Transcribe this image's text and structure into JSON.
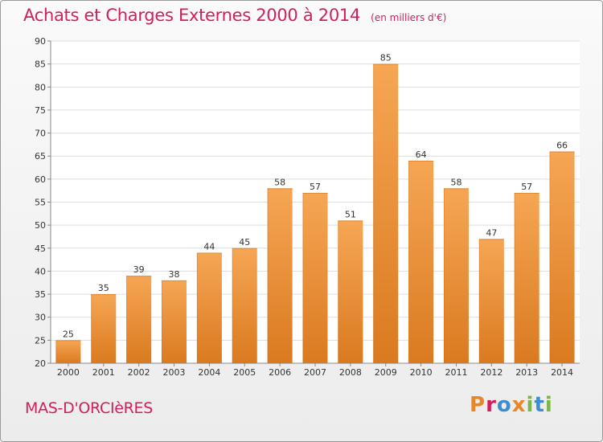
{
  "header": {
    "title": "Achats et Charges Externes 2000 à 2014",
    "unit": "(en milliers d'€)"
  },
  "footer": {
    "commune": "MAS-D'ORCIèRES",
    "logo_text": "Proxiti",
    "logo_colors": [
      "#e8862a",
      "#d21f5a",
      "#3b8fd0",
      "#e8862a",
      "#7ab648",
      "#3b8fd0",
      "#7ab648"
    ]
  },
  "chart_data": {
    "type": "bar",
    "title": "Achats et Charges Externes 2000 à 2014",
    "subtitle": "(en milliers d'€)",
    "categories": [
      "2000",
      "2001",
      "2002",
      "2003",
      "2004",
      "2005",
      "2006",
      "2007",
      "2008",
      "2009",
      "2010",
      "2011",
      "2012",
      "2013",
      "2014"
    ],
    "values": [
      25,
      35,
      39,
      38,
      44,
      45,
      58,
      57,
      51,
      85,
      64,
      58,
      47,
      57,
      66
    ],
    "ylim": [
      20,
      90
    ],
    "yticks": [
      20,
      25,
      30,
      35,
      40,
      45,
      50,
      55,
      60,
      65,
      70,
      75,
      80,
      85,
      90
    ],
    "grid": true,
    "bar_color": "#f0923a",
    "bar_color_light": "#f6ac5c",
    "bar_color_dark": "#d8761c"
  }
}
